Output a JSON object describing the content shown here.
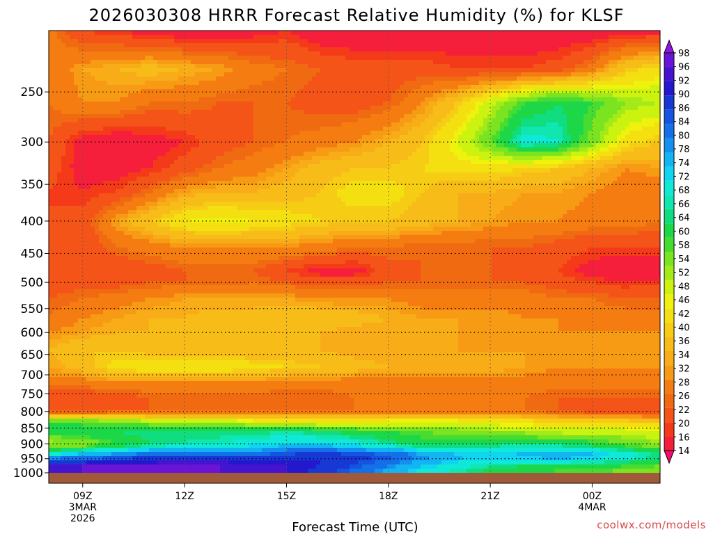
{
  "chart_data": {
    "type": "heatmap",
    "title": "2026030308 HRRR Forecast Relative Humidity (%) for KLSF",
    "xlabel": "Forecast Time (UTC)",
    "ylabel": "",
    "credit": "coolwx.com/models",
    "x_range_hours": [
      8,
      26
    ],
    "x_ticks": [
      {
        "hour": 9,
        "lines": [
          "09Z",
          "3MAR",
          "2026"
        ]
      },
      {
        "hour": 12,
        "lines": [
          "12Z"
        ]
      },
      {
        "hour": 15,
        "lines": [
          "15Z"
        ]
      },
      {
        "hour": 18,
        "lines": [
          "18Z"
        ]
      },
      {
        "hour": 21,
        "lines": [
          "21Z"
        ]
      },
      {
        "hour": 24,
        "lines": [
          "00Z",
          "4MAR"
        ]
      }
    ],
    "y_scale": "log",
    "y_range_hpa": [
      1000,
      200
    ],
    "y_ticks": [
      250,
      300,
      350,
      400,
      450,
      500,
      550,
      600,
      650,
      700,
      750,
      800,
      850,
      900,
      950,
      1000
    ],
    "y_tick_labels": [
      "250",
      "300",
      "350",
      "400",
      "450",
      "500",
      "550",
      "600",
      "650",
      "700",
      "750",
      "800",
      "850",
      "900",
      "950",
      "1000"
    ],
    "grid": true,
    "colorbar": {
      "levels": [
        14,
        16,
        20,
        22,
        26,
        28,
        32,
        34,
        36,
        40,
        42,
        46,
        48,
        52,
        54,
        58,
        60,
        64,
        66,
        68,
        72,
        74,
        78,
        80,
        84,
        86,
        90,
        92,
        96,
        98
      ],
      "labels": [
        "14",
        "16",
        "20",
        "22",
        "26",
        "28",
        "32",
        "34",
        "36",
        "40",
        "42",
        "46",
        "48",
        "52",
        "54",
        "58",
        "60",
        "64",
        "66",
        "68",
        "72",
        "74",
        "78",
        "80",
        "84",
        "86",
        "90",
        "92",
        "96",
        "98"
      ],
      "colors": [
        "#f50c6a",
        "#f51f3c",
        "#f53a1a",
        "#f55418",
        "#f06a12",
        "#f47c10",
        "#f79a14",
        "#f8ac18",
        "#f8bc18",
        "#f6cc14",
        "#f4e010",
        "#eef20c",
        "#ccf210",
        "#a4ea18",
        "#7ae420",
        "#48dc30",
        "#1cd848",
        "#10dc80",
        "#10e6b0",
        "#10e8d8",
        "#10d4f0",
        "#12b4f2",
        "#1490f0",
        "#1470e8",
        "#1454e0",
        "#1838d6",
        "#2418ce",
        "#4414d0",
        "#6a14d6",
        "#9018de"
      ]
    },
    "field": {
      "x_hours": [
        8,
        9,
        10,
        11,
        12,
        13,
        14,
        15,
        16,
        17,
        18,
        19,
        20,
        21,
        22,
        23,
        24,
        25,
        26
      ],
      "pressure_hpa": [
        200,
        230,
        260,
        300,
        330,
        360,
        400,
        440,
        480,
        500,
        530,
        570,
        600,
        640,
        680,
        720,
        760,
        800,
        830,
        860,
        900,
        940,
        975,
        1000
      ],
      "rh_percent": [
        [
          30,
          22,
          20,
          18,
          16,
          16,
          18,
          20,
          16,
          16,
          16,
          16,
          16,
          16,
          16,
          16,
          16,
          18,
          18
        ],
        [
          28,
          34,
          36,
          38,
          36,
          34,
          30,
          28,
          26,
          24,
          24,
          24,
          22,
          22,
          22,
          24,
          30,
          40,
          44
        ],
        [
          28,
          32,
          32,
          28,
          28,
          26,
          26,
          26,
          24,
          24,
          26,
          32,
          40,
          50,
          60,
          64,
          60,
          54,
          52
        ],
        [
          26,
          18,
          16,
          18,
          20,
          24,
          26,
          28,
          30,
          32,
          36,
          40,
          48,
          58,
          70,
          68,
          56,
          44,
          40
        ],
        [
          24,
          18,
          18,
          20,
          24,
          28,
          30,
          34,
          38,
          40,
          40,
          42,
          44,
          44,
          42,
          40,
          36,
          32,
          34
        ],
        [
          22,
          20,
          22,
          28,
          34,
          36,
          36,
          38,
          40,
          44,
          44,
          40,
          36,
          36,
          34,
          34,
          32,
          30,
          28
        ],
        [
          22,
          24,
          34,
          40,
          46,
          48,
          46,
          44,
          42,
          40,
          40,
          38,
          36,
          34,
          32,
          32,
          30,
          30,
          28
        ],
        [
          22,
          22,
          28,
          30,
          32,
          32,
          32,
          32,
          30,
          28,
          28,
          26,
          26,
          26,
          26,
          24,
          22,
          22,
          22
        ],
        [
          22,
          22,
          22,
          24,
          26,
          26,
          26,
          22,
          18,
          18,
          24,
          26,
          26,
          26,
          24,
          22,
          18,
          16,
          16
        ],
        [
          24,
          24,
          24,
          26,
          26,
          26,
          28,
          26,
          24,
          24,
          26,
          26,
          26,
          26,
          26,
          24,
          22,
          20,
          22
        ],
        [
          26,
          28,
          30,
          32,
          34,
          34,
          34,
          34,
          32,
          32,
          32,
          30,
          30,
          30,
          30,
          28,
          28,
          26,
          26
        ],
        [
          28,
          32,
          34,
          36,
          36,
          38,
          38,
          40,
          40,
          38,
          36,
          34,
          34,
          34,
          32,
          32,
          30,
          30,
          30
        ],
        [
          32,
          34,
          36,
          36,
          36,
          36,
          36,
          36,
          36,
          34,
          34,
          34,
          34,
          32,
          32,
          32,
          32,
          32,
          32
        ],
        [
          36,
          40,
          40,
          38,
          36,
          36,
          36,
          36,
          36,
          34,
          34,
          34,
          34,
          34,
          34,
          32,
          32,
          32,
          32
        ],
        [
          34,
          38,
          44,
          46,
          46,
          46,
          44,
          42,
          40,
          38,
          36,
          36,
          36,
          36,
          34,
          32,
          32,
          32,
          32
        ],
        [
          30,
          30,
          32,
          32,
          32,
          32,
          32,
          30,
          30,
          30,
          30,
          30,
          30,
          30,
          30,
          30,
          30,
          30,
          30
        ],
        [
          22,
          22,
          24,
          26,
          26,
          26,
          26,
          26,
          26,
          28,
          28,
          28,
          28,
          28,
          28,
          26,
          26,
          26,
          26
        ],
        [
          24,
          24,
          26,
          26,
          26,
          28,
          28,
          28,
          28,
          28,
          28,
          28,
          28,
          28,
          28,
          26,
          24,
          24,
          22
        ],
        [
          60,
          58,
          56,
          54,
          54,
          52,
          48,
          46,
          46,
          46,
          48,
          48,
          48,
          46,
          44,
          42,
          42,
          42,
          40
        ],
        [
          62,
          64,
          64,
          66,
          66,
          64,
          64,
          66,
          64,
          62,
          60,
          58,
          56,
          54,
          52,
          50,
          50,
          50,
          48
        ],
        [
          52,
          54,
          60,
          64,
          66,
          68,
          70,
          72,
          72,
          70,
          66,
          62,
          62,
          64,
          66,
          64,
          62,
          58,
          54
        ],
        [
          74,
          78,
          82,
          84,
          86,
          86,
          84,
          88,
          90,
          88,
          86,
          80,
          76,
          74,
          76,
          78,
          76,
          72,
          66
        ],
        [
          92,
          96,
          96,
          96,
          96,
          96,
          94,
          92,
          90,
          86,
          80,
          74,
          70,
          66,
          64,
          64,
          62,
          60,
          58
        ],
        [
          92,
          96,
          96,
          98,
          98,
          96,
          94,
          92,
          88,
          82,
          76,
          70,
          66,
          62,
          60,
          58,
          58,
          56,
          56
        ]
      ]
    }
  }
}
